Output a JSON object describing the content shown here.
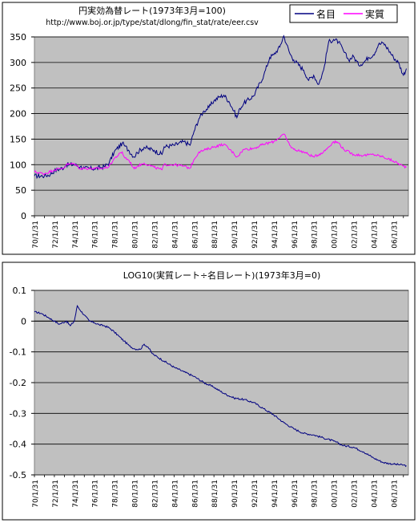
{
  "chart_data": [
    {
      "type": "line",
      "title": "円実効為替レート(1973年3月=100)",
      "subtitle": "http://www.boj.or.jp/type/stat/dlong/fin_stat/rate/eer.csv",
      "ylim": [
        0,
        350
      ],
      "yticks": [
        "350",
        "300",
        "250",
        "200",
        "150",
        "100",
        "50",
        "0"
      ],
      "x_tick_labels": [
        "70/1/31",
        "72/1/31",
        "74/1/31",
        "76/1/31",
        "78/1/31",
        "80/1/31",
        "82/1/31",
        "84/1/31",
        "86/1/31",
        "88/1/31",
        "90/1/31",
        "92/1/31",
        "94/1/31",
        "96/1/31",
        "98/1/31",
        "00/1/31",
        "02/1/31",
        "04/1/31",
        "06/1/31"
      ],
      "legend_position": "top-right",
      "grid": true,
      "colors": {
        "plot_bg": "#c0c0c0",
        "nominal": "#000080",
        "real": "#ff00ff"
      },
      "series": [
        {
          "name": "名目",
          "color": "#000080",
          "x": [
            1970.0,
            1971.0,
            1971.6,
            1972.0,
            1973.0,
            1973.2,
            1974.0,
            1974.6,
            1975.0,
            1976.0,
            1977.0,
            1977.5,
            1978.0,
            1978.8,
            1979.0,
            1979.5,
            1980.0,
            1980.3,
            1981.0,
            1982.0,
            1982.8,
            1983.0,
            1984.0,
            1985.0,
            1985.6,
            1986.0,
            1986.5,
            1987.0,
            1987.5,
            1988.0,
            1988.5,
            1989.0,
            1989.5,
            1990.0,
            1990.3,
            1990.6,
            1991.0,
            1992.0,
            1993.0,
            1993.6,
            1994.0,
            1994.6,
            1995.0,
            1995.3,
            1995.6,
            1996.0,
            1997.0,
            1997.5,
            1998.0,
            1998.5,
            1999.0,
            1999.5,
            2000.0,
            2000.5,
            2001.0,
            2001.5,
            2002.0,
            2002.5,
            2003.0,
            2003.5,
            2004.0,
            2004.5,
            2005.0,
            2005.5,
            2006.0,
            2006.5,
            2007.0,
            2007.3
          ],
          "y": [
            78,
            78,
            81,
            88,
            95,
            100,
            100,
            96,
            93,
            92,
            96,
            104,
            125,
            142,
            138,
            127,
            115,
            124,
            134,
            128,
            120,
            135,
            138,
            145,
            138,
            165,
            190,
            205,
            212,
            225,
            232,
            236,
            224,
            205,
            192,
            210,
            220,
            235,
            275,
            310,
            315,
            330,
            352,
            335,
            318,
            305,
            285,
            265,
            275,
            257,
            285,
            340,
            345,
            340,
            322,
            305,
            312,
            295,
            300,
            310,
            315,
            335,
            338,
            325,
            310,
            300,
            275,
            288
          ]
        },
        {
          "name": "実質",
          "color": "#ff00ff",
          "x": [
            1970.0,
            1971.0,
            1972.0,
            1973.0,
            1973.2,
            1974.0,
            1974.6,
            1975.0,
            1976.0,
            1977.0,
            1977.5,
            1978.0,
            1978.8,
            1979.0,
            1979.5,
            1980.0,
            1980.3,
            1981.0,
            1982.0,
            1982.8,
            1983.0,
            1984.0,
            1985.0,
            1985.6,
            1986.0,
            1986.5,
            1987.0,
            1988.0,
            1989.0,
            1990.0,
            1990.3,
            1991.0,
            1992.0,
            1993.0,
            1994.0,
            1995.0,
            1995.3,
            1995.6,
            1996.0,
            1997.0,
            1998.0,
            1999.0,
            2000.0,
            2000.5,
            2001.0,
            2002.0,
            2003.0,
            2004.0,
            2005.0,
            2006.0,
            2007.0,
            2007.3
          ],
          "y": [
            86,
            82,
            90,
            94,
            100,
            102,
            92,
            93,
            92,
            93,
            97,
            112,
            125,
            115,
            108,
            92,
            97,
            103,
            95,
            90,
            100,
            100,
            97,
            93,
            110,
            125,
            128,
            135,
            140,
            122,
            115,
            130,
            132,
            140,
            145,
            160,
            150,
            138,
            130,
            125,
            115,
            125,
            145,
            143,
            130,
            120,
            118,
            120,
            115,
            107,
            97,
            95
          ]
        }
      ]
    },
    {
      "type": "line",
      "title": "LOG10(実質レート÷名目レート)(1973年3月=0)",
      "ylim": [
        -0.5,
        0.1
      ],
      "yticks": [
        "0.1",
        "0",
        "-0.1",
        "-0.2",
        "-0.3",
        "-0.4",
        "-0.5"
      ],
      "x_tick_labels": [
        "70/1/31",
        "72/1/31",
        "74/1/31",
        "76/1/31",
        "78/1/31",
        "80/1/31",
        "82/1/31",
        "84/1/31",
        "86/1/31",
        "88/1/31",
        "90/1/31",
        "92/1/31",
        "94/1/31",
        "96/1/31",
        "98/1/31",
        "00/1/31",
        "02/1/31",
        "04/1/31",
        "06/1/31"
      ],
      "grid": true,
      "colors": {
        "plot_bg": "#c0c0c0",
        "line": "#000080",
        "zero_line": "#000000"
      },
      "series": [
        {
          "x": [
            1970.0,
            1970.7,
            1971.5,
            1972.0,
            1972.5,
            1973.2,
            1973.6,
            1974.0,
            1974.3,
            1974.6,
            1975.0,
            1975.5,
            1976.0,
            1976.5,
            1977.0,
            1977.5,
            1978.0,
            1978.5,
            1979.0,
            1979.5,
            1980.0,
            1980.6,
            1981.0,
            1981.4,
            1981.8,
            1982.0,
            1983.0,
            1984.0,
            1985.0,
            1986.0,
            1987.0,
            1988.0,
            1989.0,
            1990.0,
            1991.0,
            1992.0,
            1993.0,
            1994.0,
            1995.0,
            1996.0,
            1997.0,
            1998.0,
            1999.0,
            2000.0,
            2001.0,
            2002.0,
            2003.0,
            2004.0,
            2005.0,
            2006.0,
            2007.0,
            2007.3
          ],
          "y": [
            0.03,
            0.025,
            0.01,
            0.0,
            -0.01,
            0.0,
            -0.015,
            0.0,
            0.05,
            0.035,
            0.02,
            0.0,
            -0.005,
            -0.012,
            -0.015,
            -0.022,
            -0.035,
            -0.05,
            -0.065,
            -0.08,
            -0.09,
            -0.092,
            -0.075,
            -0.085,
            -0.105,
            -0.11,
            -0.13,
            -0.15,
            -0.165,
            -0.18,
            -0.2,
            -0.215,
            -0.235,
            -0.25,
            -0.255,
            -0.265,
            -0.285,
            -0.305,
            -0.33,
            -0.35,
            -0.365,
            -0.37,
            -0.38,
            -0.39,
            -0.405,
            -0.41,
            -0.425,
            -0.445,
            -0.46,
            -0.465,
            -0.468,
            -0.47
          ]
        }
      ]
    }
  ]
}
